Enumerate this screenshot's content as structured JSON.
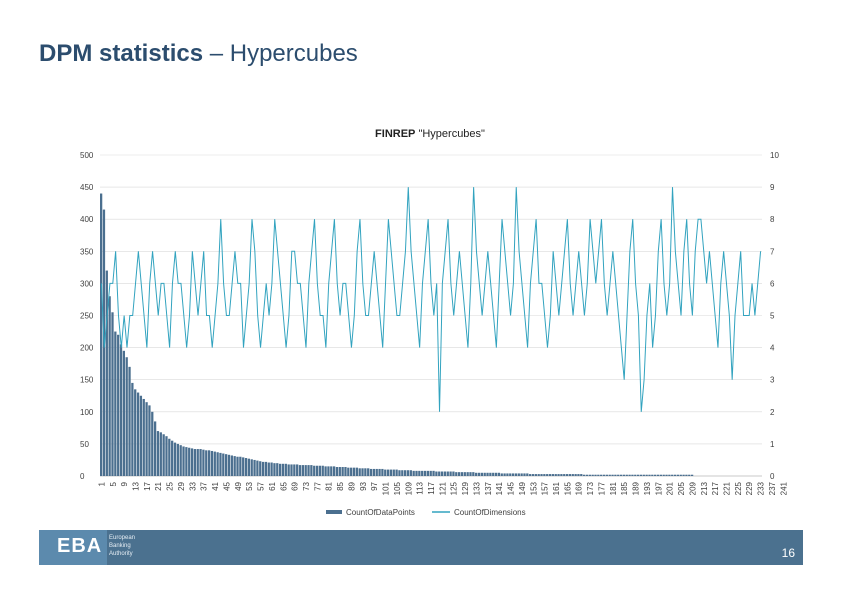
{
  "slide": {
    "title_bold": "DPM statistics",
    "title_rest": " – Hypercubes",
    "page_number": "16"
  },
  "logo": {
    "mark": "EBA",
    "line1": "European",
    "line2": "Banking",
    "line3": "Authority"
  },
  "colors": {
    "title": "#2c4d6e",
    "series_bar": "#4b6f8f",
    "series_line": "#32a3bf",
    "footer": "#4b718f",
    "gridline": "#d9d9d9"
  },
  "chart_data": {
    "type": "bar+line",
    "title_bold": "FINREP",
    "title_rest": " \"Hypercubes\"",
    "left_axis": {
      "min": 0,
      "max": 500,
      "ticks": [
        0,
        50,
        100,
        150,
        200,
        250,
        300,
        350,
        400,
        450,
        500
      ]
    },
    "right_axis": {
      "min": 0,
      "max": 10,
      "ticks": [
        0,
        1,
        2,
        3,
        4,
        5,
        6,
        7,
        8,
        9,
        10
      ]
    },
    "x_tick_labels": [
      "1",
      "5",
      "9",
      "13",
      "17",
      "21",
      "25",
      "29",
      "33",
      "37",
      "41",
      "45",
      "49",
      "53",
      "57",
      "61",
      "65",
      "69",
      "73",
      "77",
      "81",
      "85",
      "89",
      "93",
      "97",
      "101",
      "105",
      "109",
      "113",
      "117",
      "121",
      "125",
      "129",
      "133",
      "137",
      "141",
      "145",
      "149",
      "153",
      "157",
      "161",
      "165",
      "169",
      "173",
      "177",
      "181",
      "185",
      "189",
      "193",
      "197",
      "201",
      "205",
      "209",
      "213",
      "217",
      "221",
      "225",
      "229",
      "233",
      "237",
      "241"
    ],
    "grid": true,
    "legend_position": "bottom",
    "series": [
      {
        "name": "CountOfDataPoints",
        "kind": "bar",
        "axis": "left",
        "values": [
          440,
          415,
          320,
          280,
          255,
          225,
          220,
          205,
          195,
          185,
          170,
          145,
          135,
          130,
          125,
          120,
          115,
          110,
          100,
          85,
          70,
          68,
          65,
          62,
          58,
          55,
          52,
          50,
          48,
          46,
          45,
          44,
          43,
          42,
          42,
          42,
          41,
          40,
          40,
          39,
          38,
          37,
          36,
          35,
          34,
          33,
          32,
          31,
          30,
          30,
          29,
          28,
          27,
          26,
          25,
          24,
          23,
          22,
          22,
          21,
          21,
          20,
          20,
          19,
          19,
          19,
          18,
          18,
          18,
          18,
          17,
          17,
          17,
          17,
          17,
          16,
          16,
          16,
          16,
          15,
          15,
          15,
          15,
          14,
          14,
          14,
          14,
          13,
          13,
          13,
          13,
          12,
          12,
          12,
          12,
          11,
          11,
          11,
          11,
          11,
          10,
          10,
          10,
          10,
          10,
          9,
          9,
          9,
          9,
          9,
          8,
          8,
          8,
          8,
          8,
          8,
          8,
          8,
          7,
          7,
          7,
          7,
          7,
          7,
          7,
          6,
          6,
          6,
          6,
          6,
          6,
          6,
          5,
          5,
          5,
          5,
          5,
          5,
          5,
          5,
          5,
          4,
          4,
          4,
          4,
          4,
          4,
          4,
          4,
          4,
          4,
          3,
          3,
          3,
          3,
          3,
          3,
          3,
          3,
          3,
          3,
          3,
          3,
          3,
          3,
          3,
          3,
          3,
          3,
          3,
          2,
          2,
          2,
          2,
          2,
          2,
          2,
          2,
          2,
          2,
          2,
          2,
          2,
          2,
          2,
          2,
          2,
          2,
          2,
          2,
          2,
          2,
          2,
          2,
          2,
          2,
          2,
          2,
          2,
          2,
          2,
          2,
          2,
          2,
          2,
          2,
          2,
          2,
          2
        ]
      },
      {
        "name": "CountOfDimensions",
        "kind": "line",
        "axis": "right",
        "values": [
          6,
          4,
          5,
          6,
          6,
          7,
          5,
          4,
          5,
          4,
          5,
          5,
          6,
          7,
          6,
          5,
          4,
          6,
          7,
          6,
          5,
          6,
          6,
          5,
          4,
          6,
          7,
          6,
          6,
          5,
          4,
          5,
          7,
          6,
          5,
          6,
          7,
          5,
          5,
          4,
          5,
          6,
          8,
          6,
          5,
          5,
          6,
          7,
          6,
          6,
          4,
          5,
          6,
          8,
          7,
          5,
          4,
          5,
          6,
          5,
          6,
          8,
          7,
          6,
          5,
          4,
          5,
          7,
          7,
          6,
          6,
          5,
          4,
          6,
          7,
          8,
          6,
          5,
          5,
          4,
          6,
          7,
          8,
          6,
          5,
          6,
          6,
          5,
          4,
          5,
          7,
          8,
          6,
          5,
          5,
          6,
          7,
          6,
          5,
          4,
          6,
          8,
          7,
          6,
          5,
          5,
          6,
          7,
          9,
          7,
          6,
          5,
          4,
          6,
          7,
          8,
          6,
          5,
          6,
          2,
          6,
          7,
          8,
          6,
          5,
          6,
          7,
          6,
          5,
          4,
          6,
          9,
          7,
          6,
          5,
          6,
          7,
          6,
          5,
          4,
          6,
          8,
          7,
          6,
          5,
          6,
          9,
          7,
          6,
          5,
          4,
          6,
          7,
          8,
          6,
          6,
          5,
          4,
          5,
          7,
          6,
          5,
          6,
          7,
          8,
          6,
          5,
          6,
          7,
          6,
          5,
          6,
          8,
          7,
          6,
          7,
          8,
          6,
          5,
          6,
          7,
          6,
          5,
          4,
          3,
          5,
          7,
          8,
          6,
          5,
          2,
          3,
          5,
          6,
          4,
          5,
          7,
          8,
          6,
          5,
          6,
          9,
          7,
          6,
          5,
          7,
          8,
          6,
          5,
          7,
          8,
          8,
          7,
          6,
          7,
          6,
          5,
          4,
          6,
          7,
          6,
          5,
          3,
          5,
          6,
          7,
          5,
          5,
          5,
          6,
          5,
          6,
          7
        ]
      }
    ]
  }
}
